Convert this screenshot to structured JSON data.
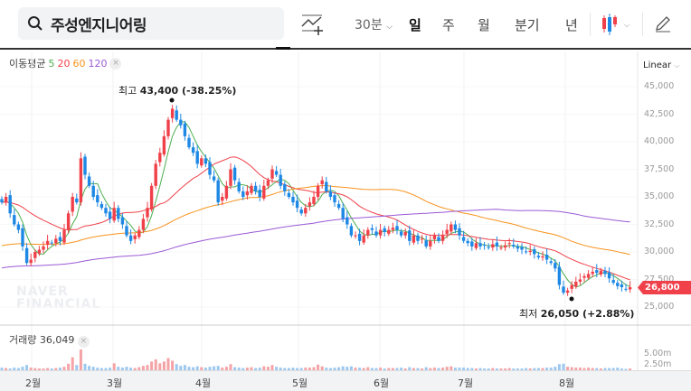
{
  "header": {
    "stock_name": "주성엔지니어링",
    "interval": "30분",
    "tabs": [
      "일",
      "주",
      "월",
      "분기",
      "년"
    ],
    "active_tab": "일"
  },
  "indicator": {
    "label": "이동평균",
    "periods": [
      "5",
      "20",
      "60",
      "120"
    ],
    "colors": [
      "#4caf50",
      "#f0414a",
      "#f7931e",
      "#9b59d6"
    ]
  },
  "scale": {
    "mode": "Linear",
    "ticks": [
      "45,000",
      "42,500",
      "40,000",
      "37,500",
      "35,000",
      "32,500",
      "30,000",
      "27,500",
      "25,000"
    ],
    "volume_ticks": [
      "5.00m",
      "2.50m"
    ]
  },
  "current_price": "26,800",
  "high_note": {
    "label": "최고",
    "value": "43,400 (-38.25%)"
  },
  "low_note": {
    "label": "최저",
    "value": "26,050 (+2.88%)"
  },
  "volume": {
    "label": "거래량",
    "value": "36,049"
  },
  "watermark": [
    "NAVER",
    "FINANCIAL"
  ],
  "months": [
    "2월",
    "3월",
    "4월",
    "5월",
    "6월",
    "7월",
    "8월"
  ],
  "colors": {
    "up": "#f0414a",
    "down": "#1e88e5"
  },
  "chart_data": {
    "type": "candlestick",
    "closes": [
      34500,
      35000,
      33500,
      32500,
      32000,
      30500,
      29000,
      29300,
      30000,
      30200,
      30500,
      31000,
      30800,
      31200,
      31000,
      32000,
      33500,
      35000,
      34500,
      38500,
      37000,
      36000,
      35000,
      34500,
      34000,
      33500,
      33000,
      34000,
      33000,
      32500,
      31500,
      31000,
      31500,
      32000,
      33000,
      34000,
      36000,
      38000,
      39000,
      40500,
      42000,
      43000,
      42000,
      41500,
      40500,
      39500,
      39000,
      38000,
      38500,
      38000,
      37000,
      36500,
      34500,
      35000,
      36000,
      37500,
      36500,
      35500,
      35000,
      35500,
      36000,
      35500,
      35000,
      36000,
      36500,
      37500,
      37000,
      36000,
      35500,
      35000,
      34500,
      34000,
      33500,
      34000,
      34500,
      35000,
      36000,
      36500,
      35500,
      35000,
      34500,
      34000,
      33000,
      32500,
      31500,
      31500,
      31000,
      31500,
      32000,
      32000,
      31500,
      32000,
      31800,
      32000,
      32200,
      32000,
      31500,
      31800,
      31000,
      31500,
      31000,
      31200,
      30500,
      31000,
      31500,
      31000,
      31500,
      32000,
      32500,
      32000,
      31500,
      31000,
      30800,
      30500,
      30800,
      30500,
      30600,
      30400,
      30700,
      30500,
      30400,
      30600,
      30800,
      30500,
      30300,
      30200,
      30000,
      30100,
      29800,
      29500,
      29600,
      29300,
      29000,
      28500,
      27000,
      26300,
      26500,
      27000,
      27300,
      27500,
      27800,
      28000,
      28200,
      28100,
      28300,
      28000,
      27600,
      27200,
      26900,
      26800,
      26600,
      26800
    ],
    "volumes_m": [
      0.6,
      0.5,
      0.4,
      0.6,
      0.5,
      0.8,
      1.2,
      0.6,
      0.5,
      0.4,
      0.4,
      0.5,
      0.4,
      0.5,
      0.6,
      0.8,
      1.5,
      3.0,
      1.2,
      4.8,
      1.5,
      1.0,
      0.8,
      0.6,
      0.5,
      0.5,
      0.6,
      1.6,
      0.8,
      0.6,
      0.8,
      0.6,
      0.5,
      0.7,
      1.0,
      1.2,
      2.0,
      2.5,
      1.6,
      2.0,
      2.8,
      2.2,
      1.4,
      1.0,
      1.2,
      0.8,
      0.7,
      0.9,
      0.7,
      0.6,
      0.8,
      0.9,
      1.0,
      0.6,
      0.8,
      1.4,
      0.7,
      0.6,
      0.5,
      0.6,
      0.7,
      0.5,
      0.6,
      0.9,
      0.8,
      1.2,
      0.8,
      0.6,
      0.5,
      0.5,
      0.6,
      0.5,
      0.5,
      0.6,
      0.6,
      0.7,
      1.3,
      0.9,
      0.6,
      0.5,
      0.6,
      0.7,
      0.9,
      0.8,
      0.9,
      0.6,
      0.6,
      0.5,
      0.7,
      0.5,
      0.5,
      0.6,
      0.4,
      0.5,
      0.5,
      0.5,
      0.6,
      0.4,
      0.7,
      0.5,
      0.5,
      0.4,
      0.7,
      0.5,
      0.6,
      0.5,
      0.6,
      0.8,
      0.9,
      0.6,
      0.6,
      0.6,
      0.5,
      0.5,
      0.4,
      0.5,
      0.4,
      0.4,
      0.5,
      0.4,
      0.4,
      0.4,
      0.5,
      0.4,
      0.4,
      0.4,
      0.5,
      0.4,
      0.5,
      0.5,
      0.5,
      0.6,
      0.6,
      0.8,
      1.4,
      1.5,
      0.8,
      0.7,
      0.6,
      0.6,
      0.5,
      0.6,
      0.5,
      0.5,
      0.4,
      0.5,
      0.5,
      0.5,
      0.6,
      0.4,
      0.3,
      0.4
    ],
    "ylim": [
      25000,
      45000
    ]
  }
}
